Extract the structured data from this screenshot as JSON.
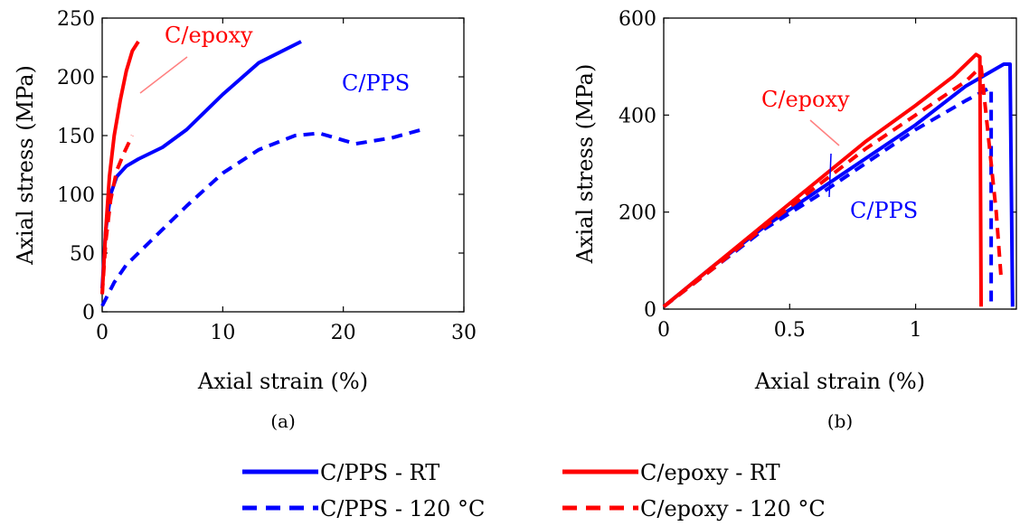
{
  "chart_data": [
    {
      "type": "line",
      "sublabel": "(a)",
      "xlabel": "Axial strain (%)",
      "ylabel": "Axial stress (MPa)",
      "xlim": [
        0,
        30
      ],
      "ylim": [
        0,
        250
      ],
      "xticks": [
        0,
        10,
        20,
        30
      ],
      "yticks": [
        0,
        50,
        100,
        150,
        200,
        250
      ],
      "annotations": [
        {
          "text": "C/epoxy",
          "color": "#ff0000"
        },
        {
          "text": "C/PPS",
          "color": "#0000ff"
        }
      ],
      "series": [
        {
          "name": "C/PPS - RT",
          "color": "#0000ff",
          "dash": "solid",
          "x": [
            0,
            0.3,
            0.7,
            1.2,
            2,
            3,
            5,
            7,
            10,
            13,
            16.5
          ],
          "y": [
            20,
            70,
            100,
            115,
            124,
            130,
            140,
            155,
            185,
            212,
            230
          ]
        },
        {
          "name": "C/PPS - 120 °C",
          "color": "#0000ff",
          "dash": "dashed",
          "x": [
            0,
            1,
            2,
            4,
            7,
            10,
            13,
            16,
            18,
            21,
            24,
            26.5
          ],
          "y": [
            5,
            25,
            40,
            60,
            90,
            118,
            138,
            150,
            152,
            143,
            148,
            155
          ]
        },
        {
          "name": "C/epoxy - RT",
          "color": "#ff0000",
          "dash": "solid",
          "x": [
            0,
            0.3,
            0.6,
            1,
            1.5,
            2,
            2.5,
            3
          ],
          "y": [
            15,
            70,
            115,
            150,
            180,
            205,
            222,
            230
          ]
        },
        {
          "name": "C/epoxy - 120 °C",
          "color": "#ff0000",
          "dash": "dashed",
          "x": [
            0,
            0.3,
            0.7,
            1.2,
            1.8,
            2.5
          ],
          "y": [
            15,
            60,
            95,
            120,
            135,
            150
          ]
        }
      ]
    },
    {
      "type": "line",
      "sublabel": "(b)",
      "xlabel": "Axial strain (%)",
      "ylabel": "Axial stress (MPa)",
      "xlim": [
        0,
        1.4
      ],
      "ylim": [
        0,
        600
      ],
      "xticks": [
        0,
        0.5,
        1
      ],
      "yticks": [
        0,
        200,
        400,
        600
      ],
      "annotations": [
        {
          "text": "C/epoxy",
          "color": "#ff0000"
        },
        {
          "text": "C/PPS",
          "color": "#0000ff"
        }
      ],
      "series": [
        {
          "name": "C/PPS - RT",
          "color": "#0000ff",
          "dash": "solid",
          "x": [
            0,
            0.2,
            0.4,
            0.6,
            0.8,
            1.0,
            1.2,
            1.35,
            1.375,
            1.385
          ],
          "y": [
            5,
            90,
            170,
            240,
            310,
            380,
            460,
            505,
            505,
            5
          ]
        },
        {
          "name": "C/PPS - 120 °C",
          "color": "#0000ff",
          "dash": "dashed",
          "x": [
            0,
            0.2,
            0.4,
            0.6,
            0.8,
            1.0,
            1.2,
            1.29,
            1.3,
            1.3
          ],
          "y": [
            5,
            85,
            165,
            230,
            300,
            370,
            430,
            455,
            455,
            15
          ]
        },
        {
          "name": "C/epoxy - RT",
          "color": "#ff0000",
          "dash": "solid",
          "x": [
            0,
            0.2,
            0.4,
            0.6,
            0.8,
            1.0,
            1.15,
            1.24,
            1.255,
            1.26
          ],
          "y": [
            5,
            90,
            175,
            260,
            345,
            420,
            480,
            525,
            520,
            5
          ]
        },
        {
          "name": "C/epoxy - 120 °C",
          "color": "#ff0000",
          "dash": "dashed",
          "x": [
            0,
            0.2,
            0.4,
            0.6,
            0.8,
            1.0,
            1.2,
            1.26,
            1.32,
            1.34
          ],
          "y": [
            5,
            85,
            170,
            250,
            330,
            400,
            470,
            500,
            200,
            60
          ]
        }
      ]
    }
  ],
  "legend": {
    "placement": "bottom-center",
    "items": [
      {
        "label": "C/PPS - RT",
        "color": "#0000ff",
        "dash": "solid"
      },
      {
        "label": "C/epoxy - RT",
        "color": "#ff0000",
        "dash": "solid"
      },
      {
        "label": "C/PPS - 120 °C",
        "color": "#0000ff",
        "dash": "dashed"
      },
      {
        "label": "C/epoxy - 120 °C",
        "color": "#ff0000",
        "dash": "dashed"
      }
    ]
  }
}
